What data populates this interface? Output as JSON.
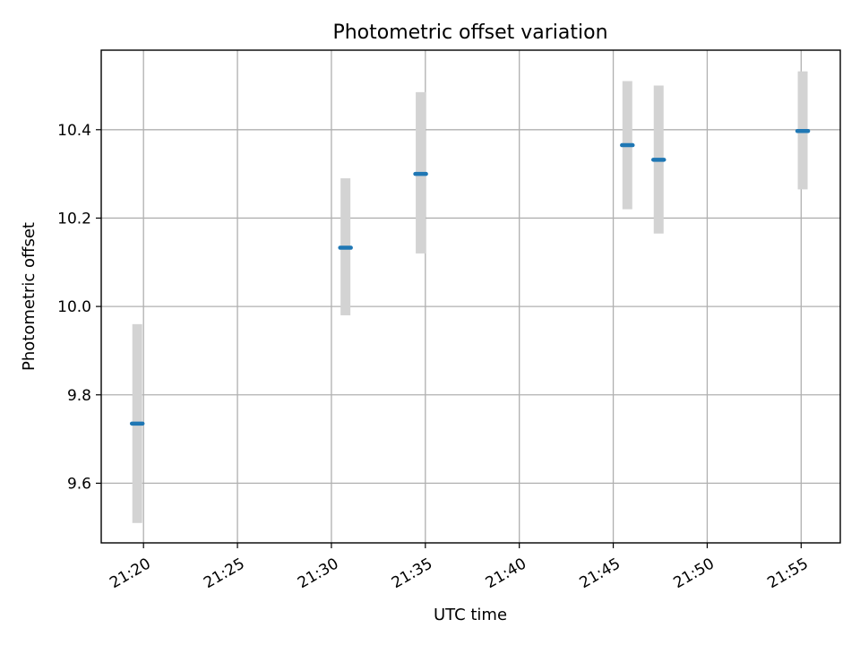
{
  "chart_data": {
    "type": "scatter",
    "title": "Photometric offset variation",
    "xlabel": "UTC time",
    "ylabel": "Photometric offset",
    "x_ticks": [
      "21:20",
      "21:25",
      "21:30",
      "21:35",
      "21:40",
      "21:45",
      "21:50",
      "21:55"
    ],
    "y_ticks": [
      "9.6",
      "9.8",
      "10.0",
      "10.2",
      "10.4"
    ],
    "xlim": [
      "21:17:45",
      "21:57:05"
    ],
    "ylim": [
      9.465,
      10.58
    ],
    "grid": true,
    "points": [
      {
        "x": "21:19:40",
        "y": 9.735,
        "error_low": 9.51,
        "error_high": 9.96
      },
      {
        "x": "21:30:45",
        "y": 10.133,
        "error_low": 9.98,
        "error_high": 10.29
      },
      {
        "x": "21:34:45",
        "y": 10.3,
        "error_low": 10.12,
        "error_high": 10.485
      },
      {
        "x": "21:45:45",
        "y": 10.365,
        "error_low": 10.22,
        "error_high": 10.51
      },
      {
        "x": "21:47:25",
        "y": 10.332,
        "error_low": 10.165,
        "error_high": 10.5
      },
      {
        "x": "21:55:05",
        "y": 10.397,
        "error_low": 10.265,
        "error_high": 10.532
      }
    ],
    "colors": {
      "marker": "#1f77b4",
      "errorbar": "#d3d3d3",
      "grid": "#b0b0b0",
      "frame": "#000000"
    }
  }
}
